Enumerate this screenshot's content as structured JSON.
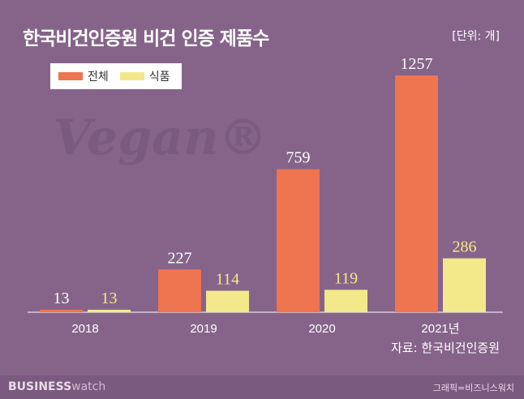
{
  "chart_data": {
    "type": "bar",
    "title": "한국비건인증원 비건 인증 제품수",
    "unit": "[단위: 개]",
    "categories": [
      "2018",
      "2019",
      "2020",
      "2021년"
    ],
    "series": [
      {
        "name": "전체",
        "color": "#ef7450",
        "values": [
          13,
          227,
          759,
          1257
        ]
      },
      {
        "name": "식품",
        "color": "#f3e98a",
        "values": [
          13,
          114,
          119,
          286
        ]
      }
    ],
    "ylim": [
      0,
      1257
    ],
    "grid": false,
    "legend": "top-left",
    "source": "자료: 한국비건인증원"
  },
  "watermark": "Vegan",
  "footer": {
    "logo_bold": "BUSINESS",
    "logo_light": "watch",
    "credit": "그래픽=비즈니스워치"
  }
}
